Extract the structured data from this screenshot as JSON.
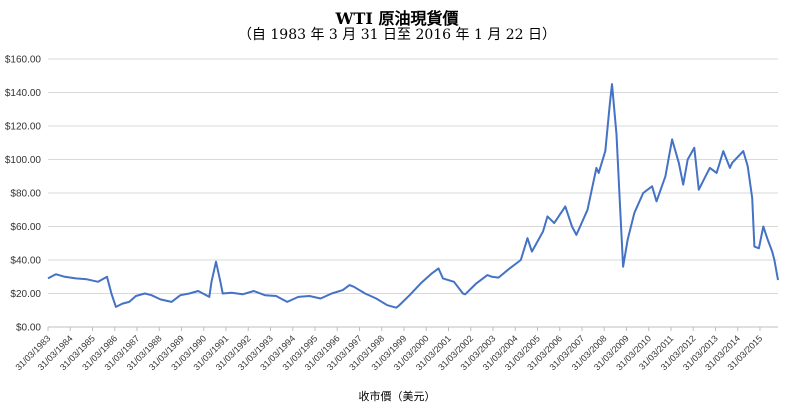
{
  "chart_data": {
    "type": "line",
    "title": "WTI 原油現貨價",
    "subtitle": "（自 1983 年 3 月 31 日至 2016 年 1 月 22 日）",
    "xlabel": "收市價（美元）",
    "ylabel": "",
    "ylim": [
      0,
      160
    ],
    "y_ticks": [
      "$0.00",
      "$20.00",
      "$40.00",
      "$60.00",
      "$80.00",
      "$100.00",
      "$120.00",
      "$140.00",
      "$160.00"
    ],
    "x_ticks": [
      "31/03/1983",
      "31/03/1984",
      "31/03/1985",
      "31/03/1986",
      "31/03/1987",
      "31/03/1988",
      "31/03/1989",
      "31/03/1990",
      "31/03/1991",
      "31/03/1992",
      "31/03/1993",
      "31/03/1994",
      "31/03/1995",
      "31/03/1996",
      "31/03/1997",
      "31/03/1998",
      "31/03/1999",
      "31/03/2000",
      "31/03/2001",
      "31/03/2002",
      "31/03/2003",
      "31/03/2004",
      "31/03/2005",
      "31/03/2006",
      "31/03/2007",
      "31/03/2008",
      "31/03/2009",
      "31/03/2010",
      "31/03/2011",
      "31/03/2012",
      "31/03/2013",
      "31/03/2014",
      "31/03/2015"
    ],
    "line_color": "#4472C4",
    "grid": "horizontal",
    "series": [
      {
        "name": "",
        "x": [
          1983.25,
          1983.6,
          1984.0,
          1984.5,
          1985.0,
          1985.5,
          1985.9,
          1986.1,
          1986.3,
          1986.6,
          1986.9,
          1987.2,
          1987.6,
          1987.9,
          1988.3,
          1988.8,
          1989.2,
          1989.6,
          1990.0,
          1990.5,
          1990.6,
          1990.8,
          1991.0,
          1991.1,
          1991.5,
          1992.0,
          1992.5,
          1993.0,
          1993.5,
          1994.0,
          1994.5,
          1995.0,
          1995.5,
          1996.0,
          1996.5,
          1996.8,
          1997.0,
          1997.5,
          1998.0,
          1998.5,
          1998.9,
          1999.0,
          1999.5,
          2000.0,
          2000.5,
          2000.8,
          2001.0,
          2001.5,
          2001.9,
          2002.0,
          2002.5,
          2003.0,
          2003.2,
          2003.5,
          2004.0,
          2004.5,
          2004.8,
          2005.0,
          2005.5,
          2005.7,
          2006.0,
          2006.5,
          2006.8,
          2007.0,
          2007.5,
          2007.9,
          2008.0,
          2008.3,
          2008.5,
          2008.6,
          2008.8,
          2008.95,
          2009.1,
          2009.3,
          2009.6,
          2010.0,
          2010.4,
          2010.6,
          2011.0,
          2011.3,
          2011.6,
          2011.8,
          2012.0,
          2012.3,
          2012.5,
          2012.8,
          2013.0,
          2013.3,
          2013.6,
          2013.9,
          2014.0,
          2014.5,
          2014.7,
          2014.9,
          2015.0,
          2015.2,
          2015.4,
          2015.6,
          2015.8,
          2015.9,
          2016.06
        ],
        "values": [
          29.0,
          31.5,
          30.0,
          29.0,
          28.5,
          27.0,
          30.0,
          20.0,
          12.0,
          14.0,
          15.0,
          18.5,
          20.0,
          19.0,
          16.5,
          15.0,
          19.0,
          20.0,
          21.5,
          18.0,
          27.0,
          39.0,
          27.0,
          20.0,
          20.5,
          19.5,
          21.5,
          19.0,
          18.5,
          15.0,
          18.0,
          18.5,
          17.0,
          20.0,
          22.0,
          25.0,
          24.0,
          20.0,
          17.0,
          13.0,
          11.5,
          12.5,
          19.0,
          26.0,
          32.0,
          35.0,
          29.0,
          27.0,
          20.0,
          19.5,
          26.0,
          31.0,
          30.0,
          29.5,
          35.0,
          40.0,
          53.0,
          45.0,
          57.0,
          66.0,
          62.0,
          72.0,
          60.0,
          55.0,
          70.0,
          95.0,
          92.0,
          105.0,
          133.0,
          145.0,
          115.0,
          75.0,
          36.0,
          52.0,
          68.0,
          80.0,
          84.0,
          75.0,
          90.0,
          112.0,
          98.0,
          85.0,
          100.0,
          107.0,
          82.0,
          90.0,
          95.0,
          92.0,
          105.0,
          95.0,
          98.0,
          105.0,
          96.0,
          77.0,
          48.0,
          47.0,
          60.0,
          52.0,
          45.0,
          40.0,
          28.0
        ]
      }
    ]
  }
}
